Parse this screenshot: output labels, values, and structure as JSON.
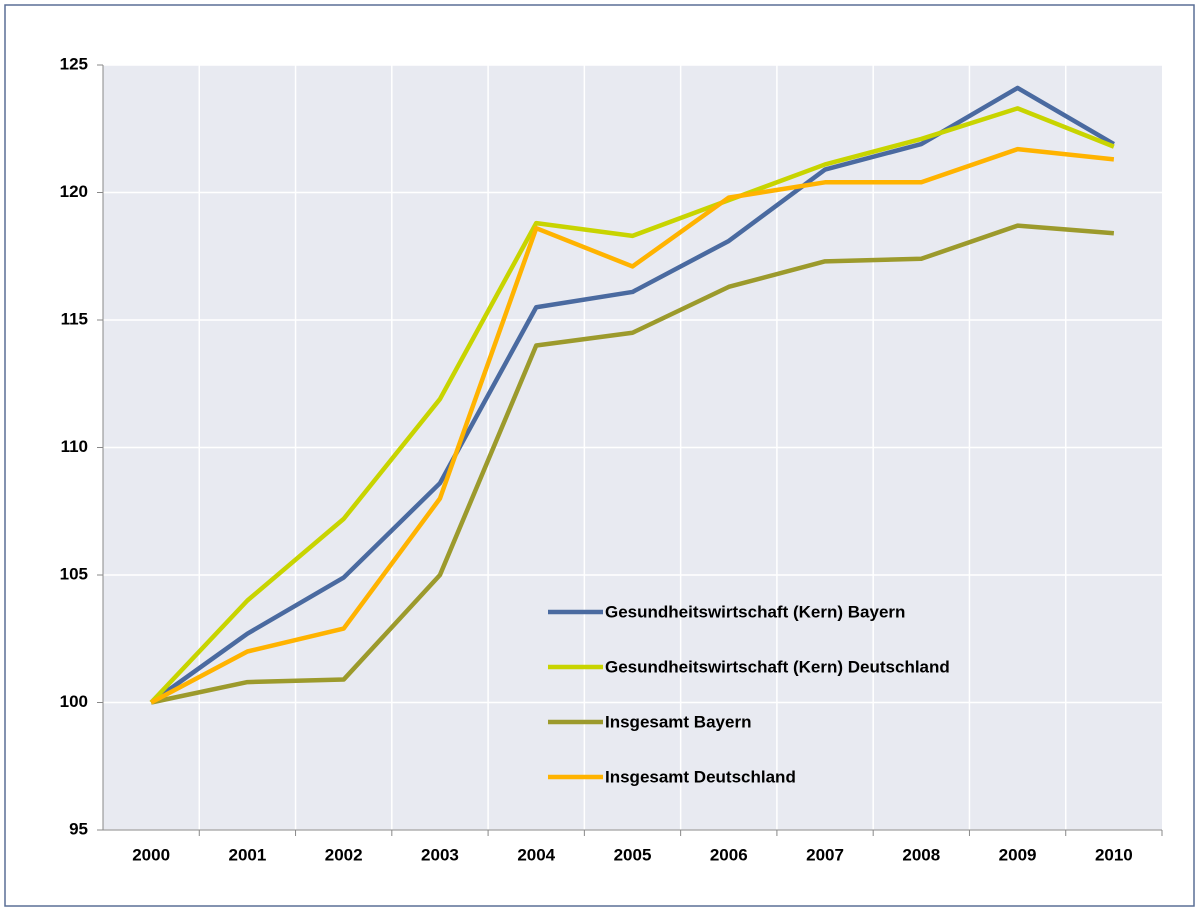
{
  "chart_data": {
    "type": "line",
    "categories": [
      "2000",
      "2001",
      "2002",
      "2003",
      "2004",
      "2005",
      "2006",
      "2007",
      "2008",
      "2009",
      "2010"
    ],
    "series": [
      {
        "name": "Gesundheitswirtschaft (Kern) Bayern",
        "color": "#4a6aa0",
        "values": [
          100,
          102.7,
          104.9,
          108.6,
          115.5,
          116.1,
          118.1,
          120.9,
          121.9,
          124.1,
          121.9
        ]
      },
      {
        "name": "Gesundheitswirtschaft (Kern) Deutschland",
        "color": "#c8d400",
        "values": [
          100,
          104.0,
          107.2,
          111.9,
          118.8,
          118.3,
          119.7,
          121.1,
          122.1,
          123.3,
          121.8
        ]
      },
      {
        "name": "Insgesamt Bayern",
        "color": "#9c9a2c",
        "values": [
          100,
          100.8,
          100.9,
          105.0,
          114.0,
          114.5,
          116.3,
          117.3,
          117.4,
          118.7,
          118.4
        ]
      },
      {
        "name": "Insgesamt Deutschland",
        "color": "#ffb300",
        "values": [
          100,
          102.0,
          102.9,
          108.0,
          118.6,
          117.1,
          119.8,
          120.4,
          120.4,
          121.7,
          121.3
        ]
      }
    ],
    "ylim": [
      95,
      125
    ],
    "yticks": [
      95,
      100,
      105,
      110,
      115,
      120,
      125
    ],
    "grid": true,
    "legend": "lower right"
  }
}
